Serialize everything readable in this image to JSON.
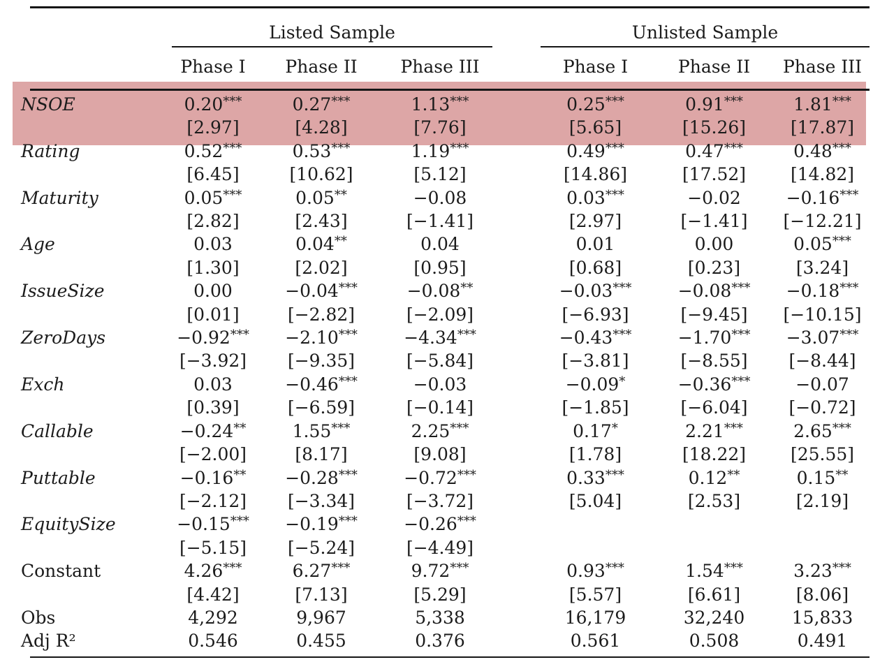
{
  "table": {
    "highlight_color": "#dda6a6",
    "rule_color": "#151515",
    "col_groups": [
      {
        "label": "Listed Sample",
        "columns": [
          "Phase I",
          "Phase II",
          "Phase III"
        ]
      },
      {
        "label": "Unlisted Sample",
        "columns": [
          "Phase I",
          "Phase II",
          "Phase III"
        ]
      }
    ],
    "rows": [
      {
        "label": "NSOE",
        "italic": true,
        "highlight": true,
        "coef": [
          "0.20***",
          "0.27***",
          "1.13***",
          "0.25***",
          "0.91***",
          "1.81***"
        ],
        "tstat": [
          "[2.97]",
          "[4.28]",
          "[7.76]",
          "[5.65]",
          "[15.26]",
          "[17.87]"
        ]
      },
      {
        "label": "Rating",
        "italic": true,
        "coef": [
          "0.52***",
          "0.53***",
          "1.19***",
          "0.49***",
          "0.47***",
          "0.48***"
        ],
        "tstat": [
          "[6.45]",
          "[10.62]",
          "[5.12]",
          "[14.86]",
          "[17.52]",
          "[14.82]"
        ]
      },
      {
        "label": "Maturity",
        "italic": true,
        "coef": [
          "0.05***",
          "0.05**",
          "−0.08",
          "0.03***",
          "−0.02",
          "−0.16***"
        ],
        "tstat": [
          "[2.82]",
          "[2.43]",
          "[−1.41]",
          "[2.97]",
          "[−1.41]",
          "[−12.21]"
        ]
      },
      {
        "label": "Age",
        "italic": true,
        "coef": [
          "0.03",
          "0.04**",
          "0.04",
          "0.01",
          "0.00",
          "0.05***"
        ],
        "tstat": [
          "[1.30]",
          "[2.02]",
          "[0.95]",
          "[0.68]",
          "[0.23]",
          "[3.24]"
        ]
      },
      {
        "label": "IssueSize",
        "italic": true,
        "coef": [
          "0.00",
          "−0.04***",
          "−0.08**",
          "−0.03***",
          "−0.08***",
          "−0.18***"
        ],
        "tstat": [
          "[0.01]",
          "[−2.82]",
          "[−2.09]",
          "[−6.93]",
          "[−9.45]",
          "[−10.15]"
        ]
      },
      {
        "label": "ZeroDays",
        "italic": true,
        "coef": [
          "−0.92***",
          "−2.10***",
          "−4.34***",
          "−0.43***",
          "−1.70***",
          "−3.07***"
        ],
        "tstat": [
          "[−3.92]",
          "[−9.35]",
          "[−5.84]",
          "[−3.81]",
          "[−8.55]",
          "[−8.44]"
        ]
      },
      {
        "label": "Exch",
        "italic": true,
        "coef": [
          "0.03",
          "−0.46***",
          "−0.03",
          "−0.09*",
          "−0.36***",
          "−0.07"
        ],
        "tstat": [
          "[0.39]",
          "[−6.59]",
          "[−0.14]",
          "[−1.85]",
          "[−6.04]",
          "[−0.72]"
        ]
      },
      {
        "label": "Callable",
        "italic": true,
        "coef": [
          "−0.24**",
          "1.55***",
          "2.25***",
          "0.17*",
          "2.21***",
          "2.65***"
        ],
        "tstat": [
          "[−2.00]",
          "[8.17]",
          "[9.08]",
          "[1.78]",
          "[18.22]",
          "[25.55]"
        ]
      },
      {
        "label": "Puttable",
        "italic": true,
        "coef": [
          "−0.16**",
          "−0.28***",
          "−0.72***",
          "0.33***",
          "0.12**",
          "0.15**"
        ],
        "tstat": [
          "[−2.12]",
          "[−3.34]",
          "[−3.72]",
          "[5.04]",
          "[2.53]",
          "[2.19]"
        ]
      },
      {
        "label": "EquitySize",
        "italic": true,
        "coef": [
          "−0.15***",
          "−0.19***",
          "−0.26***",
          "",
          "",
          ""
        ],
        "tstat": [
          "[−5.15]",
          "[−5.24]",
          "[−4.49]",
          "",
          "",
          ""
        ]
      },
      {
        "label": "Constant",
        "italic": false,
        "coef": [
          "4.26***",
          "6.27***",
          "9.72***",
          "0.93***",
          "1.54***",
          "3.23***"
        ],
        "tstat": [
          "[4.42]",
          "[7.13]",
          "[5.29]",
          "[5.57]",
          "[6.61]",
          "[8.06]"
        ]
      },
      {
        "label": "Obs",
        "italic": false,
        "single": [
          "4,292",
          "9,967",
          "5,338",
          "16,179",
          "32,240",
          "15,833"
        ]
      },
      {
        "label": "Adj R²",
        "italic": false,
        "single": [
          "0.546",
          "0.455",
          "0.376",
          "0.561",
          "0.508",
          "0.491"
        ]
      }
    ]
  }
}
